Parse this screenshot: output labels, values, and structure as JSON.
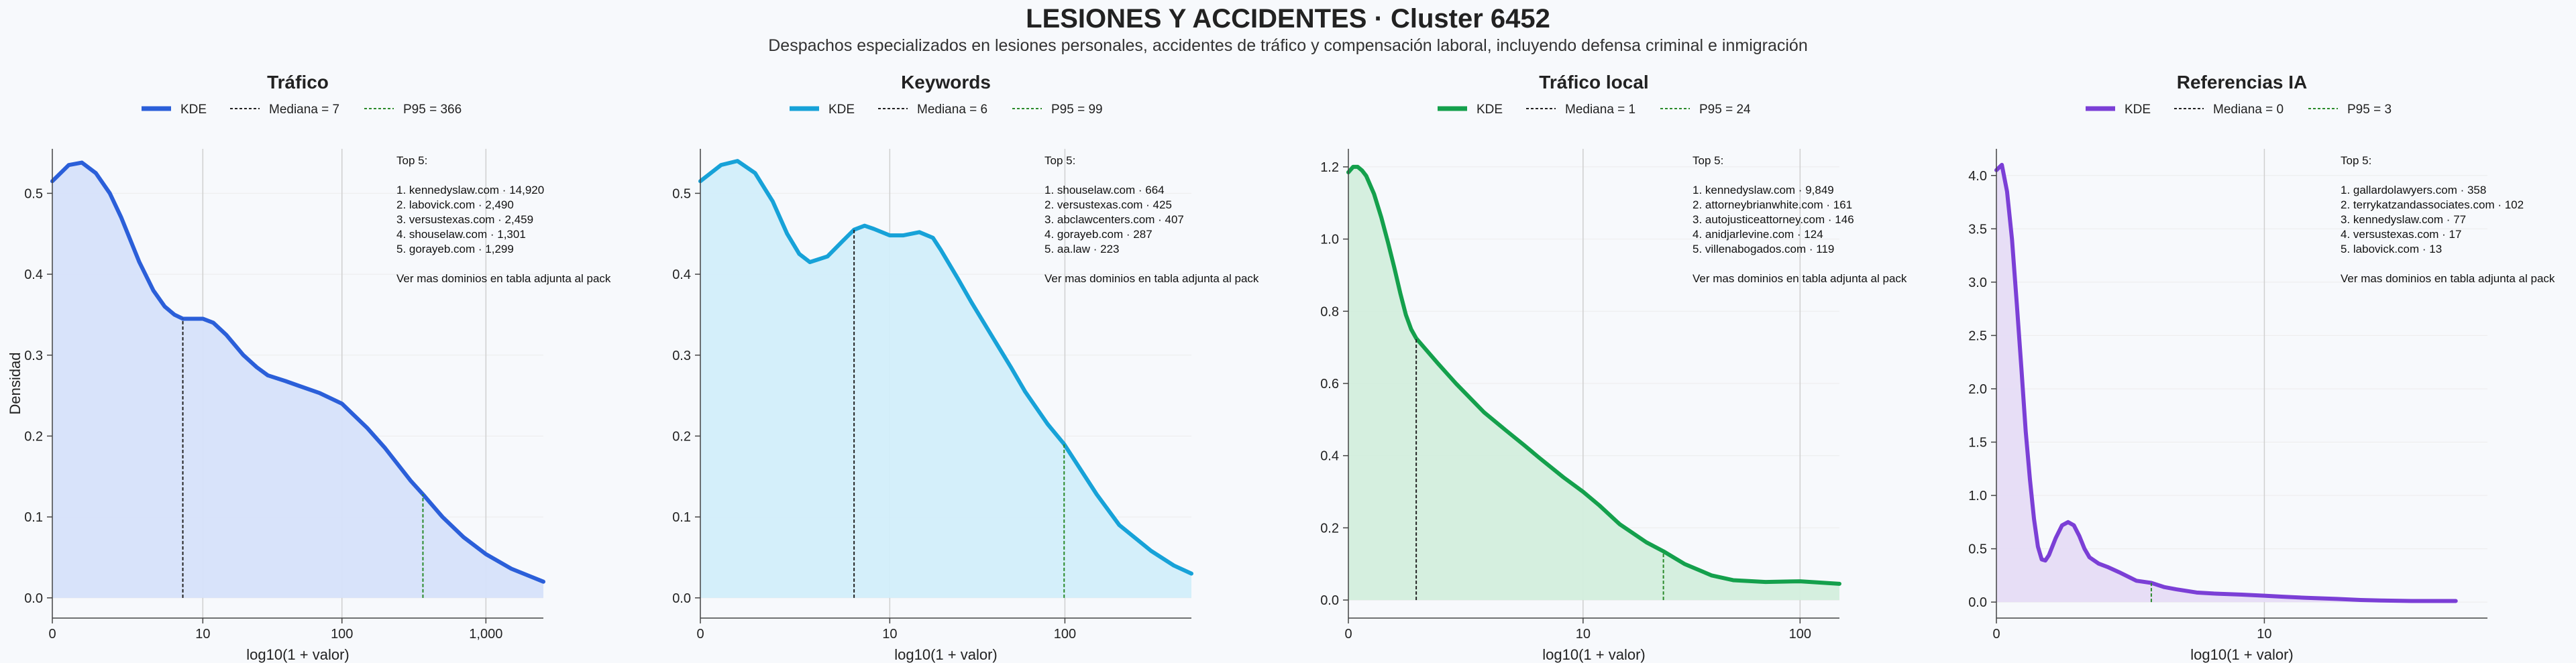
{
  "figure": {
    "title": "LESIONES Y ACCIDENTES · Cluster 6452",
    "subtitle": "Despachos especializados en lesiones personales, accidentes de tráfico y compensación laboral, incluyendo defensa criminal e inmigración",
    "ylabel": "Densidad"
  },
  "chart_data": [
    {
      "type": "area",
      "title": "Tráfico",
      "xlabel": "log10(1 + valor)",
      "x_scale": "log10(1+x)",
      "xlim": [
        0,
        2500
      ],
      "ylim": [
        -0.025,
        0.555
      ],
      "x_ticks": [
        0,
        10,
        100,
        1000
      ],
      "x_tick_labels": [
        "0",
        "10",
        "100",
        "1,000"
      ],
      "y_ticks": [
        0.0,
        0.1,
        0.2,
        0.3,
        0.4,
        0.5
      ],
      "y_tick_labels": [
        "0.0",
        "0.1",
        "0.2",
        "0.3",
        "0.4",
        "0.5"
      ],
      "color": "#2b5fd9",
      "fill": "#d6e1fa",
      "legend": {
        "kde": "KDE",
        "median": "Mediana = 7",
        "p95": "P95 = 366"
      },
      "median": 7,
      "p95": 366,
      "kde": {
        "x": [
          0,
          0.3,
          0.6,
          1,
          1.5,
          2,
          3,
          4,
          5,
          6,
          7,
          8,
          10,
          12,
          15,
          20,
          25,
          30,
          40,
          50,
          70,
          100,
          150,
          200,
          300,
          366,
          500,
          700,
          1000,
          1500,
          2000,
          2500
        ],
        "y": [
          0.515,
          0.535,
          0.538,
          0.525,
          0.5,
          0.47,
          0.415,
          0.38,
          0.36,
          0.35,
          0.345,
          0.345,
          0.345,
          0.34,
          0.325,
          0.3,
          0.285,
          0.275,
          0.268,
          0.262,
          0.253,
          0.24,
          0.21,
          0.185,
          0.145,
          0.128,
          0.1,
          0.075,
          0.054,
          0.036,
          0.027,
          0.02
        ]
      },
      "annotation": [
        "Top 5:",
        "",
        "1. kennedyslaw.com · 14,920",
        "2. labovick.com · 2,490",
        "3. versustexas.com · 2,459",
        "4. shouselaw.com · 1,301",
        "5. gorayeb.com · 1,299",
        "",
        "Ver mas dominios en tabla adjunta al pack"
      ]
    },
    {
      "type": "area",
      "title": "Keywords",
      "xlabel": "log10(1 + valor)",
      "x_scale": "log10(1+x)",
      "xlim": [
        0,
        500
      ],
      "ylim": [
        -0.025,
        0.555
      ],
      "x_ticks": [
        0,
        10,
        100
      ],
      "x_tick_labels": [
        "0",
        "10",
        "100"
      ],
      "y_ticks": [
        0.0,
        0.1,
        0.2,
        0.3,
        0.4,
        0.5
      ],
      "y_tick_labels": [
        "0.0",
        "0.1",
        "0.2",
        "0.3",
        "0.4",
        "0.5"
      ],
      "color": "#17a2d8",
      "fill": "#d2eefa",
      "legend": {
        "kde": "KDE",
        "median": "Mediana = 6",
        "p95": "P95 = 99"
      },
      "median": 6,
      "p95": 99,
      "kde": {
        "x": [
          0,
          0.3,
          0.6,
          1,
          1.5,
          2,
          2.5,
          3,
          4,
          5,
          6,
          7,
          8,
          10,
          12,
          15,
          18,
          20,
          25,
          30,
          40,
          50,
          60,
          80,
          99,
          150,
          200,
          300,
          400,
          500
        ],
        "y": [
          0.515,
          0.535,
          0.54,
          0.525,
          0.49,
          0.45,
          0.425,
          0.415,
          0.422,
          0.44,
          0.455,
          0.46,
          0.456,
          0.448,
          0.448,
          0.452,
          0.445,
          0.43,
          0.395,
          0.365,
          0.32,
          0.285,
          0.255,
          0.215,
          0.19,
          0.128,
          0.09,
          0.058,
          0.04,
          0.03
        ]
      },
      "annotation": [
        "Top 5:",
        "",
        "1. shouselaw.com · 664",
        "2. versustexas.com · 425",
        "3. abclawcenters.com · 407",
        "4. gorayeb.com · 287",
        "5. aa.law · 223",
        "",
        "Ver mas dominios en tabla adjunta al pack"
      ]
    },
    {
      "type": "area",
      "title": "Tráfico local",
      "xlabel": "log10(1 + valor)",
      "x_scale": "log10(1+x)",
      "xlim": [
        0,
        150
      ],
      "ylim": [
        -0.05,
        1.25
      ],
      "x_ticks": [
        0,
        10,
        100
      ],
      "x_tick_labels": [
        "0",
        "10",
        "100"
      ],
      "y_ticks": [
        0.0,
        0.2,
        0.4,
        0.6,
        0.8,
        1.0,
        1.2
      ],
      "y_tick_labels": [
        "0.0",
        "0.2",
        "0.4",
        "0.6",
        "0.8",
        "1.0",
        "1.2"
      ],
      "color": "#14a04c",
      "fill": "#d3eedd",
      "legend": {
        "kde": "KDE",
        "median": "Mediana = 1",
        "p95": "P95 = 24"
      },
      "median": 1,
      "p95": 24,
      "kde": {
        "x": [
          0,
          0.05,
          0.1,
          0.15,
          0.2,
          0.3,
          0.4,
          0.5,
          0.6,
          0.7,
          0.8,
          0.9,
          1,
          1.2,
          1.5,
          2,
          3,
          4,
          5,
          6,
          8,
          10,
          12,
          15,
          20,
          24,
          30,
          40,
          50,
          70,
          100,
          150
        ],
        "y": [
          1.185,
          1.2,
          1.2,
          1.19,
          1.175,
          1.125,
          1.06,
          0.99,
          0.92,
          0.85,
          0.79,
          0.75,
          0.725,
          0.695,
          0.655,
          0.6,
          0.52,
          0.47,
          0.43,
          0.395,
          0.34,
          0.3,
          0.262,
          0.21,
          0.16,
          0.135,
          0.1,
          0.068,
          0.055,
          0.05,
          0.052,
          0.045
        ]
      },
      "annotation": [
        "Top 5:",
        "",
        "1. kennedyslaw.com · 9,849",
        "2. attorneybrianwhite.com · 161",
        "3. autojusticeattorney.com · 146",
        "4. anidjarlevine.com · 124",
        "5. villenabogados.com · 119",
        "",
        "Ver mas dominios en tabla adjunta al pack"
      ]
    },
    {
      "type": "area",
      "title": "Referencias IA",
      "xlabel": "log10(1 + valor)",
      "x_scale": "log10(1+x)",
      "xlim": [
        0,
        80
      ],
      "ylim": [
        -0.15,
        4.25
      ],
      "x_ticks": [
        0,
        10
      ],
      "x_tick_labels": [
        "0",
        "10"
      ],
      "y_ticks": [
        0.0,
        0.5,
        1.0,
        1.5,
        2.0,
        2.5,
        3.0,
        3.5,
        4.0
      ],
      "y_tick_labels": [
        "0.0",
        "0.5",
        "1.0",
        "1.5",
        "2.0",
        "2.5",
        "3.0",
        "3.5",
        "4.0"
      ],
      "color": "#7b3fd6",
      "fill": "#e6dcf6",
      "legend": {
        "kde": "KDE",
        "median": "Mediana = 0",
        "p95": "P95 = 3"
      },
      "median": 0,
      "p95": 3,
      "kde": {
        "x": [
          0,
          0.05,
          0.1,
          0.15,
          0.2,
          0.25,
          0.3,
          0.35,
          0.4,
          0.45,
          0.5,
          0.55,
          0.6,
          0.7,
          0.8,
          0.9,
          1,
          1.1,
          1.2,
          1.3,
          1.5,
          1.7,
          2,
          2.5,
          3,
          3.5,
          4,
          5,
          6,
          8,
          10,
          12,
          15,
          20,
          25,
          30,
          40,
          50,
          60
        ],
        "y": [
          4.05,
          4.1,
          3.85,
          3.4,
          2.8,
          2.2,
          1.6,
          1.15,
          0.78,
          0.52,
          0.4,
          0.39,
          0.44,
          0.6,
          0.72,
          0.75,
          0.72,
          0.62,
          0.5,
          0.42,
          0.36,
          0.33,
          0.28,
          0.2,
          0.18,
          0.14,
          0.12,
          0.09,
          0.08,
          0.07,
          0.06,
          0.05,
          0.04,
          0.03,
          0.02,
          0.015,
          0.01,
          0.01,
          0.01
        ]
      },
      "annotation": [
        "Top 5:",
        "",
        "1. gallardolawyers.com · 358",
        "2. terrykatzandassociates.com · 102",
        "3. kennedyslaw.com · 77",
        "4. versustexas.com · 17",
        "5. labovick.com · 13",
        "",
        "Ver mas dominios en tabla adjunta al pack"
      ]
    }
  ]
}
